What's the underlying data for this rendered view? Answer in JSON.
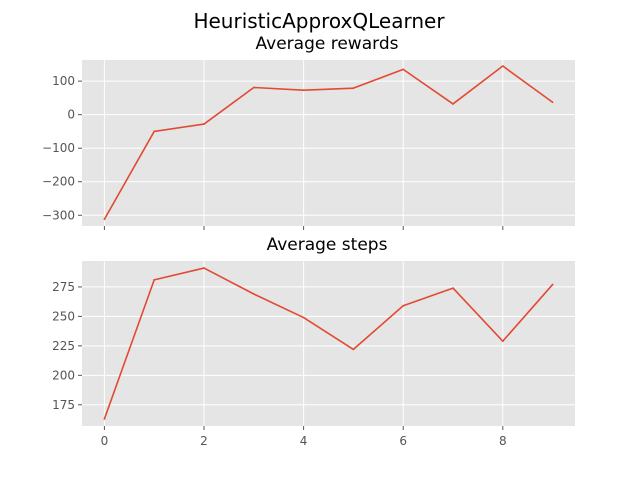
{
  "figure_title": "HeuristicApproxQLearner",
  "colors": {
    "panel_bg": "#e5e5e5",
    "grid": "#ffffff",
    "line": "#e24a33",
    "tick_text": "#555555"
  },
  "chart_data": [
    {
      "type": "line",
      "title": "Average rewards",
      "xlabel": "",
      "ylabel": "",
      "x": [
        0,
        1,
        2,
        3,
        4,
        5,
        6,
        7,
        8,
        9
      ],
      "series": [
        {
          "values": [
            -312,
            -50,
            -28,
            81,
            73,
            79,
            135,
            32,
            145,
            37
          ]
        }
      ],
      "xlim": [
        -0.45,
        9.45
      ],
      "ylim": [
        -332,
        163
      ],
      "xticks": [
        0,
        2,
        4,
        6,
        8
      ],
      "yticks": [
        -300,
        -200,
        -100,
        0,
        100
      ],
      "ytick_labels": [
        "−300",
        "−200",
        "−100",
        "0",
        "100"
      ],
      "show_x_tick_labels": false,
      "grid": true
    },
    {
      "type": "line",
      "title": "Average steps",
      "xlabel": "",
      "ylabel": "",
      "x": [
        0,
        1,
        2,
        3,
        4,
        5,
        6,
        7,
        8,
        9
      ],
      "series": [
        {
          "values": [
            163,
            281,
            291,
            269,
            249,
            222,
            259,
            274,
            229,
            277
          ]
        }
      ],
      "xlim": [
        -0.45,
        9.45
      ],
      "ylim": [
        157,
        297
      ],
      "xticks": [
        0,
        2,
        4,
        6,
        8
      ],
      "xtick_labels": [
        "0",
        "2",
        "4",
        "6",
        "8"
      ],
      "yticks": [
        175,
        200,
        225,
        250,
        275
      ],
      "ytick_labels": [
        "175",
        "200",
        "225",
        "250",
        "275"
      ],
      "show_x_tick_labels": true,
      "grid": true
    }
  ]
}
